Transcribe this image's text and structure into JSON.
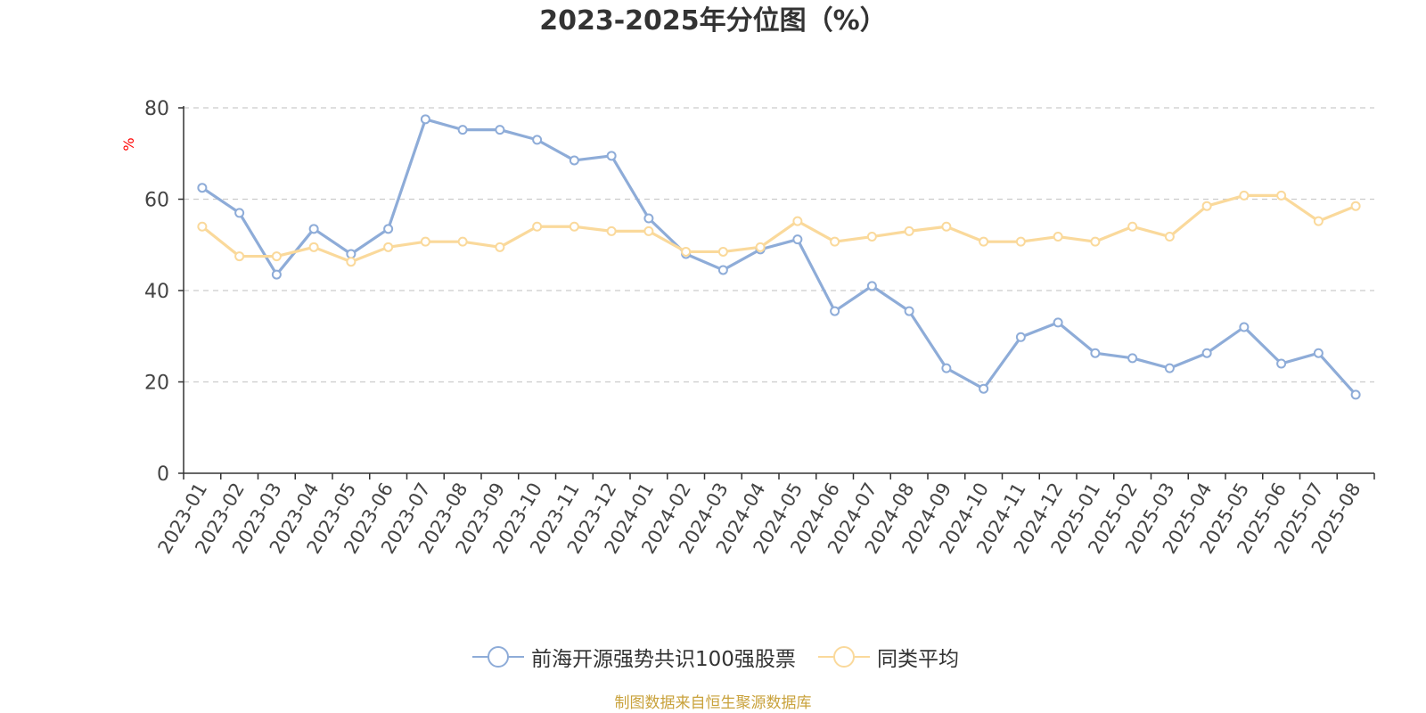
{
  "title": "2023-2025年分位图（%）",
  "source_note": "制图数据来自恒生聚源数据库",
  "chart_data": {
    "type": "line",
    "title": "2023-2025年分位图（%）",
    "xlabel": "",
    "ylabel": "%",
    "ylim": [
      0,
      80
    ],
    "yticks": [
      0,
      20,
      40,
      60,
      80
    ],
    "grid": true,
    "legend_position": "bottom",
    "categories": [
      "2023-01",
      "2023-02",
      "2023-03",
      "2023-04",
      "2023-05",
      "2023-06",
      "2023-07",
      "2023-08",
      "2023-09",
      "2023-10",
      "2023-11",
      "2023-12",
      "2024-01",
      "2024-02",
      "2024-03",
      "2024-04",
      "2024-05",
      "2024-06",
      "2024-07",
      "2024-08",
      "2024-09",
      "2024-10",
      "2024-11",
      "2024-12",
      "2025-01",
      "2025-02",
      "2025-03",
      "2025-04",
      "2025-05",
      "2025-06",
      "2025-07",
      "2025-08"
    ],
    "series": [
      {
        "name": "前海开源强势共识100强股票",
        "color": "#8eacd8",
        "values": [
          62.5,
          57.0,
          43.5,
          53.5,
          48.0,
          53.5,
          77.5,
          75.2,
          75.2,
          73.0,
          68.5,
          69.5,
          55.8,
          48.0,
          44.5,
          49.0,
          51.2,
          35.5,
          41.0,
          35.5,
          23.0,
          18.5,
          29.8,
          33.0,
          26.3,
          25.2,
          23.0,
          26.3,
          32.0,
          24.0,
          26.3,
          17.2
        ]
      },
      {
        "name": "同类平均",
        "color": "#fad99b",
        "values": [
          54.0,
          47.5,
          47.5,
          49.5,
          46.3,
          49.5,
          50.7,
          50.7,
          49.5,
          54.0,
          54.0,
          53.0,
          53.0,
          48.5,
          48.5,
          49.5,
          55.2,
          50.7,
          51.8,
          53.0,
          54.0,
          50.7,
          50.7,
          51.8,
          50.7,
          54.0,
          51.8,
          58.5,
          60.8,
          60.8,
          55.2,
          58.5
        ]
      }
    ]
  }
}
